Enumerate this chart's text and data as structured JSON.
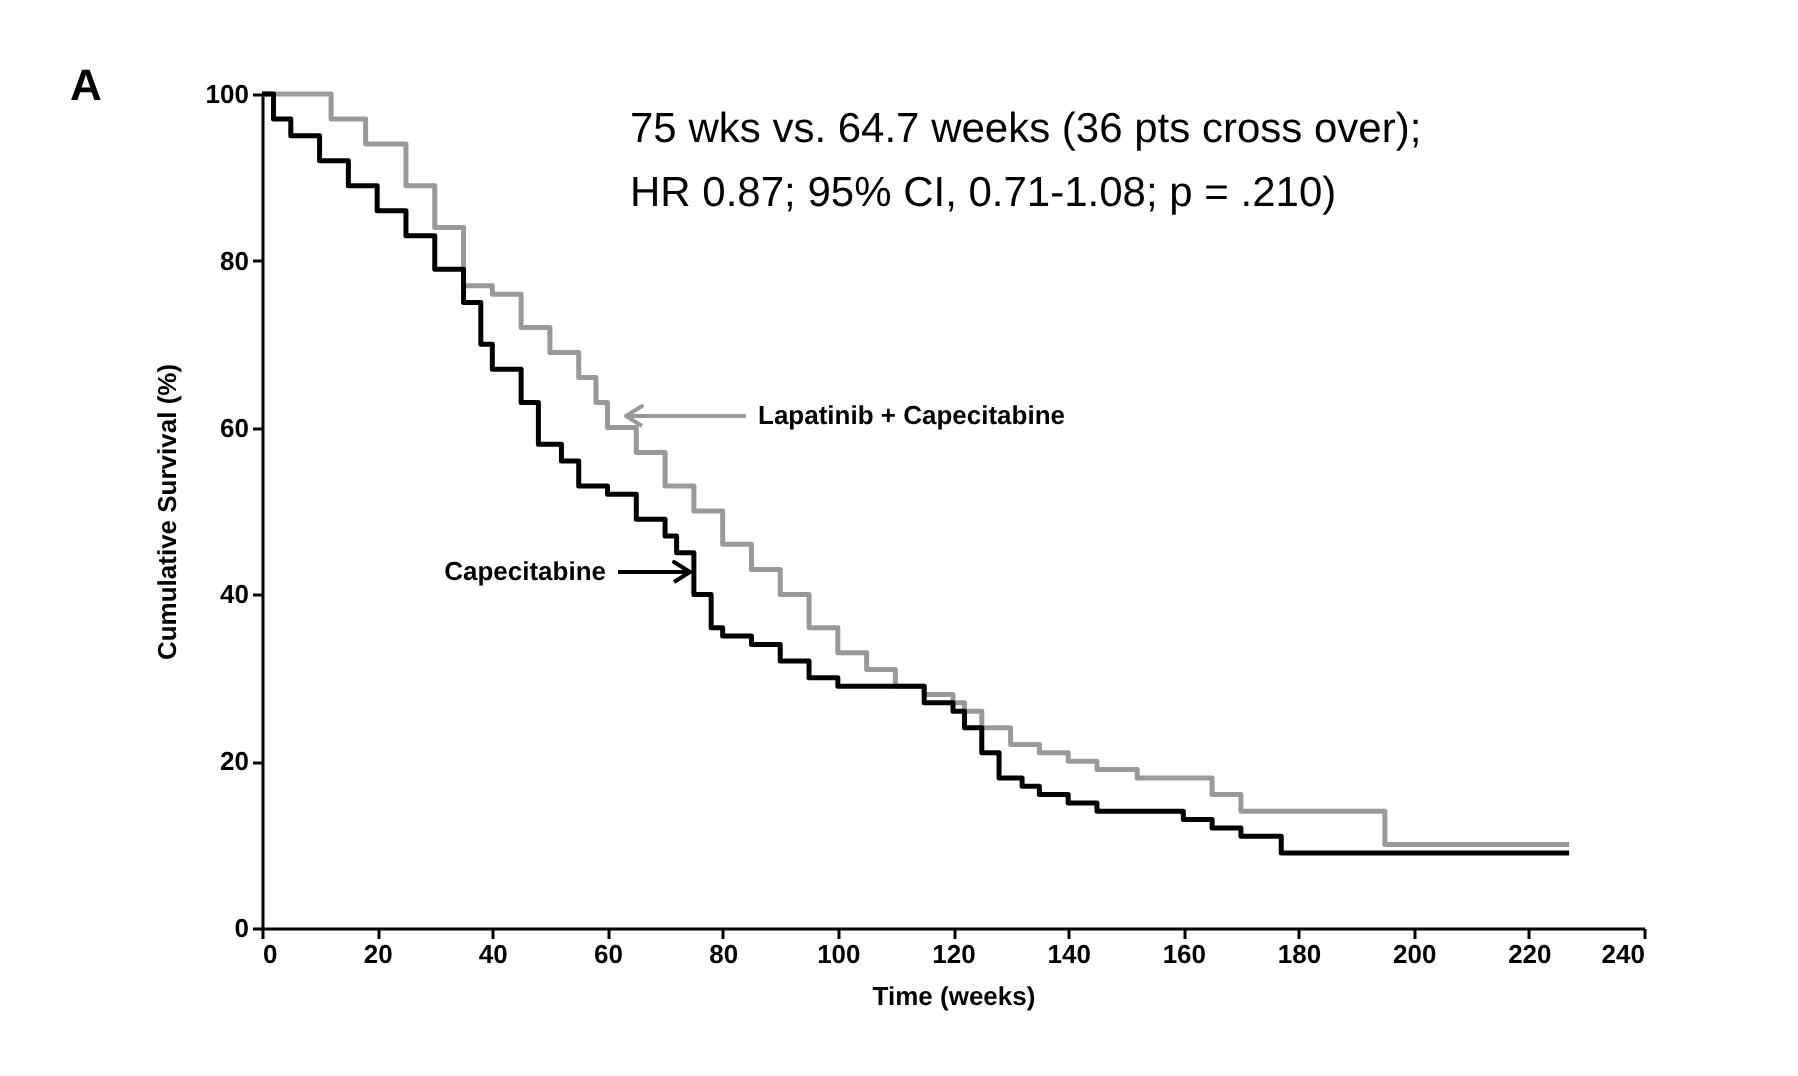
{
  "chart_data": {
    "type": "step",
    "xlabel": "Time (weeks)",
    "ylabel": "Cumulative Survival (%)",
    "xlim": [
      0,
      240
    ],
    "xticks": [
      0,
      20,
      40,
      60,
      80,
      100,
      120,
      140,
      160,
      180,
      200,
      220,
      240
    ],
    "ylim": [
      0,
      100
    ],
    "yticks": [
      0,
      20,
      40,
      60,
      80,
      100
    ],
    "grid": false,
    "line_style": "solid",
    "marker": "none",
    "series": [
      {
        "name": "Lapatinib + Capecitabine",
        "color": "#999999",
        "x": [
          0,
          8,
          12,
          18,
          25,
          30,
          35,
          40,
          45,
          50,
          55,
          58,
          60,
          65,
          70,
          75,
          80,
          85,
          90,
          95,
          100,
          105,
          110,
          115,
          120,
          122,
          125,
          130,
          135,
          140,
          145,
          152,
          165,
          170,
          195,
          227
        ],
        "values": [
          100,
          100,
          97,
          94,
          89,
          84,
          77,
          76,
          72,
          69,
          66,
          63,
          60,
          57,
          53,
          50,
          46,
          43,
          40,
          36,
          33,
          31,
          29,
          28,
          27,
          26,
          24,
          22,
          21,
          20,
          19,
          18,
          16,
          14,
          10,
          10
        ]
      },
      {
        "name": "Capecitabine",
        "color": "#000000",
        "x": [
          0,
          2,
          5,
          10,
          15,
          20,
          25,
          30,
          35,
          38,
          40,
          45,
          48,
          52,
          55,
          60,
          65,
          70,
          72,
          75,
          78,
          80,
          85,
          90,
          95,
          100,
          115,
          120,
          122,
          125,
          128,
          132,
          135,
          140,
          145,
          160,
          165,
          170,
          177,
          227
        ],
        "values": [
          100,
          97,
          95,
          92,
          89,
          86,
          83,
          79,
          75,
          70,
          67,
          63,
          58,
          56,
          53,
          52,
          49,
          47,
          45,
          40,
          36,
          35,
          34,
          32,
          30,
          29,
          27,
          26,
          24,
          21,
          18,
          17,
          16,
          15,
          14,
          13,
          12,
          11,
          9,
          9
        ]
      }
    ],
    "annotations": [
      "A",
      "75 wks vs. 64.7 weeks (36 pts cross over);",
      "HR 0.87;  95% CI, 0.71-1.08;  p = .210)"
    ]
  }
}
